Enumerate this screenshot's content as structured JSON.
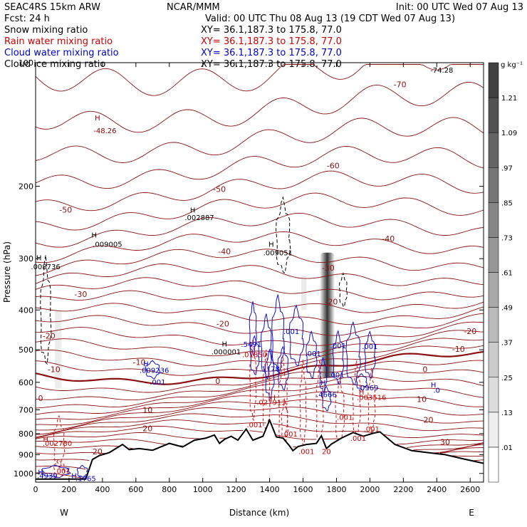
{
  "header": {
    "left1": "SEAC4RS 15km ARW",
    "left2": "Fcst:    24 h",
    "center1": "NCAR/MMM",
    "center2": "Valid: 00 UTC Thu 08 Aug 13 (19 CDT Wed 07 Aug 13)",
    "right1": "Init: 00 UTC Wed 07 Aug 13"
  },
  "legend": [
    {
      "name": "Snow mixing ratio",
      "xy": "XY=   36.1,187.3 to 175.8, 77.0",
      "color": "#000000"
    },
    {
      "name": "Rain water mixing ratio",
      "xy": "XY=   36.1,187.3 to 175.8, 77.0",
      "color": "#cc0000"
    },
    {
      "name": "Cloud water mixing ratio",
      "xy": "XY=   36.1,187.3 to 175.8, 77.0",
      "color": "#0000cc"
    },
    {
      "name": "Cloud ice mixing ratio",
      "xy": "XY=   36.1,187.3 to 175.8, 77.0",
      "color": "#000000"
    }
  ],
  "chart_data": {
    "type": "vertical cross-section",
    "xlabel": "Distance (km)",
    "ylabel": "Pressure (hPa)",
    "xlim": [
      0,
      2680
    ],
    "ylim": [
      1050,
      100
    ],
    "yscale": "log",
    "xticks": [
      "0",
      "200",
      "400",
      "600",
      "800",
      "1000",
      "1200",
      "1400",
      "1600",
      "1800",
      "2000",
      "2200",
      "2400",
      "2600"
    ],
    "yticks": [
      "100",
      "200",
      "300",
      "400",
      "500",
      "600",
      "700",
      "800",
      "900",
      "1000"
    ],
    "x_end_labels": {
      "left": "W",
      "right": "E"
    },
    "colorbar": {
      "units": "g kg⁻¹",
      "labels": [
        ".01",
        ".13",
        ".25",
        ".37",
        ".49",
        ".61",
        ".73",
        ".85",
        ".97",
        "1.09",
        "1.21"
      ]
    },
    "temperature_contours": [
      {
        "label": "-70",
        "x": 2180,
        "p": 113
      },
      {
        "label": "-60",
        "x": 1780,
        "p": 178
      },
      {
        "label": "-50",
        "x": 180,
        "p": 228
      },
      {
        "label": "-50",
        "x": 1100,
        "p": 203
      },
      {
        "label": "-40",
        "x": 1130,
        "p": 288
      },
      {
        "label": "-40",
        "x": 2110,
        "p": 268
      },
      {
        "label": "-30",
        "x": 270,
        "p": 366
      },
      {
        "label": "-30",
        "x": 1750,
        "p": 316
      },
      {
        "label": "-20",
        "x": 80,
        "p": 462
      },
      {
        "label": "-20",
        "x": 1120,
        "p": 432
      },
      {
        "label": "-20",
        "x": 1770,
        "p": 382
      },
      {
        "label": "-20",
        "x": 2600,
        "p": 450
      },
      {
        "label": "-10",
        "x": 110,
        "p": 558
      },
      {
        "label": "-10",
        "x": 2530,
        "p": 498
      },
      {
        "label": "-10",
        "x": 620,
        "p": 536
      },
      {
        "label": "0",
        "x": 1090,
        "p": 596
      },
      {
        "label": "0",
        "x": 2330,
        "p": 558
      },
      {
        "label": "0",
        "x": 30,
        "p": 656
      },
      {
        "label": "10",
        "x": 670,
        "p": 700
      },
      {
        "label": "10",
        "x": 2310,
        "p": 660
      },
      {
        "label": "20",
        "x": 670,
        "p": 776
      },
      {
        "label": "20",
        "x": 2350,
        "p": 740
      },
      {
        "label": "20",
        "x": 370,
        "p": 885
      },
      {
        "label": "30",
        "x": 2450,
        "p": 838
      }
    ],
    "annotations": [
      {
        "text": "-74.28",
        "x": 2430,
        "p": 104,
        "color": "#000000"
      },
      {
        "text": "H",
        "x": 370,
        "p": 136,
        "color": "#880000"
      },
      {
        "text": "-48.26",
        "x": 415,
        "p": 146,
        "color": "#880000"
      },
      {
        "text": "H",
        "x": 940,
        "p": 228,
        "color": "#000000"
      },
      {
        "text": ".002887",
        "x": 980,
        "p": 238,
        "color": "#000000"
      },
      {
        "text": "H",
        "x": 350,
        "p": 262,
        "color": "#000000"
      },
      {
        "text": ".009005",
        "x": 430,
        "p": 276,
        "color": "#000000"
      },
      {
        "text": "H",
        "x": 20,
        "p": 298,
        "color": "#000000"
      },
      {
        "text": ".008736",
        "x": 60,
        "p": 313,
        "color": "#000000"
      },
      {
        "text": "H",
        "x": 1410,
        "p": 276,
        "color": "#000000"
      },
      {
        "text": ".009051",
        "x": 1450,
        "p": 290,
        "color": "#000000"
      },
      {
        "text": ".001",
        "x": 1530,
        "p": 450,
        "color": "#0000cc"
      },
      {
        "text": ".5491",
        "x": 1290,
        "p": 484,
        "color": "#0000cc"
      },
      {
        "text": "H",
        "x": 1130,
        "p": 483,
        "color": "#000000"
      },
      {
        "text": ".000001",
        "x": 1140,
        "p": 505,
        "color": "#000000"
      },
      {
        "text": ".01850",
        "x": 1310,
        "p": 513,
        "color": "#cc0000"
      },
      {
        "text": ".001",
        "x": 1660,
        "p": 510,
        "color": "#0000cc"
      },
      {
        "text": ".001",
        "x": 1810,
        "p": 488,
        "color": "#0000cc"
      },
      {
        "text": ".001",
        "x": 2000,
        "p": 490,
        "color": "#0000cc"
      },
      {
        "text": "H",
        "x": 660,
        "p": 540,
        "color": "#0000cc"
      },
      {
        "text": ".009236",
        "x": 710,
        "p": 560,
        "color": "#0000cc"
      },
      {
        "text": ".1178",
        "x": 1400,
        "p": 555,
        "color": "#0000cc"
      },
      {
        "text": ".001",
        "x": 1800,
        "p": 575,
        "color": "#0000cc"
      },
      {
        "text": ".001",
        "x": 730,
        "p": 598,
        "color": "#0000cc"
      },
      {
        "text": "H",
        "x": 1720,
        "p": 600,
        "color": "#0000cc"
      },
      {
        "text": ".0969",
        "x": 1990,
        "p": 618,
        "color": "#0000cc"
      },
      {
        "text": "H",
        "x": 2380,
        "p": 608,
        "color": "#0000cc"
      },
      {
        "text": ".0",
        "x": 2400,
        "p": 626,
        "color": "#0000cc"
      },
      {
        "text": ".4666",
        "x": 1740,
        "p": 641,
        "color": "#0000cc"
      },
      {
        "text": "H",
        "x": 1950,
        "p": 632,
        "color": "#cc0000"
      },
      {
        "text": ".003516",
        "x": 2010,
        "p": 652,
        "color": "#cc0000"
      },
      {
        "text": "H",
        "x": 1420,
        "p": 652,
        "color": "#cc0000"
      },
      {
        "text": ".027913",
        "x": 1410,
        "p": 670,
        "color": "#cc0000"
      },
      {
        "text": ".001",
        "x": 1850,
        "p": 728,
        "color": "#cc0000"
      },
      {
        "text": ".001",
        "x": 1310,
        "p": 760,
        "color": "#cc0000"
      },
      {
        "text": ".001",
        "x": 2010,
        "p": 778,
        "color": "#cc0000"
      },
      {
        "text": ".001",
        "x": 1520,
        "p": 800,
        "color": "#cc0000"
      },
      {
        "text": ".001",
        "x": 1930,
        "p": 820,
        "color": "#cc0000"
      },
      {
        "text": "H",
        "x": 60,
        "p": 824,
        "color": "#cc0000"
      },
      {
        "text": ".002780",
        "x": 130,
        "p": 843,
        "color": "#cc0000"
      },
      {
        "text": ".001",
        "x": 1620,
        "p": 883,
        "color": "#cc0000"
      },
      {
        "text": "20",
        "x": 1740,
        "p": 883,
        "color": "#cc0000"
      },
      {
        "text": ".001",
        "x": 160,
        "p": 986,
        "color": "#cc0000"
      },
      {
        "text": "H",
        "x": 30,
        "p": 990,
        "color": "#0000cc"
      },
      {
        "text": ".4939",
        "x": 70,
        "p": 1010,
        "color": "#0000cc"
      },
      {
        "text": "H",
        "x": 230,
        "p": 1010,
        "color": "#0000cc"
      },
      {
        "text": ".1765",
        "x": 300,
        "p": 1028,
        "color": "#0000cc"
      }
    ],
    "terrain_pressure": [
      {
        "x": 0,
        "p": 1032
      },
      {
        "x": 300,
        "p": 1032
      },
      {
        "x": 340,
        "p": 925
      },
      {
        "x": 380,
        "p": 905
      },
      {
        "x": 440,
        "p": 890
      },
      {
        "x": 520,
        "p": 850
      },
      {
        "x": 560,
        "p": 875
      },
      {
        "x": 620,
        "p": 870
      },
      {
        "x": 700,
        "p": 878
      },
      {
        "x": 800,
        "p": 845
      },
      {
        "x": 880,
        "p": 862
      },
      {
        "x": 950,
        "p": 830
      },
      {
        "x": 1020,
        "p": 820
      },
      {
        "x": 1070,
        "p": 806
      },
      {
        "x": 1100,
        "p": 845
      },
      {
        "x": 1130,
        "p": 826
      },
      {
        "x": 1170,
        "p": 812
      },
      {
        "x": 1210,
        "p": 830
      },
      {
        "x": 1260,
        "p": 780
      },
      {
        "x": 1300,
        "p": 830
      },
      {
        "x": 1360,
        "p": 812
      },
      {
        "x": 1400,
        "p": 742
      },
      {
        "x": 1440,
        "p": 815
      },
      {
        "x": 1480,
        "p": 820
      },
      {
        "x": 1520,
        "p": 858
      },
      {
        "x": 1540,
        "p": 880
      },
      {
        "x": 1570,
        "p": 860
      },
      {
        "x": 1620,
        "p": 850
      },
      {
        "x": 1680,
        "p": 845
      },
      {
        "x": 1710,
        "p": 810
      },
      {
        "x": 1740,
        "p": 870
      },
      {
        "x": 1770,
        "p": 848
      },
      {
        "x": 1830,
        "p": 820
      },
      {
        "x": 1900,
        "p": 795
      },
      {
        "x": 1960,
        "p": 812
      },
      {
        "x": 2020,
        "p": 798
      },
      {
        "x": 2060,
        "p": 792
      },
      {
        "x": 2150,
        "p": 850
      },
      {
        "x": 2250,
        "p": 880
      },
      {
        "x": 2350,
        "p": 890
      },
      {
        "x": 2450,
        "p": 900
      },
      {
        "x": 2550,
        "p": 920
      },
      {
        "x": 2680,
        "p": 945
      }
    ]
  }
}
